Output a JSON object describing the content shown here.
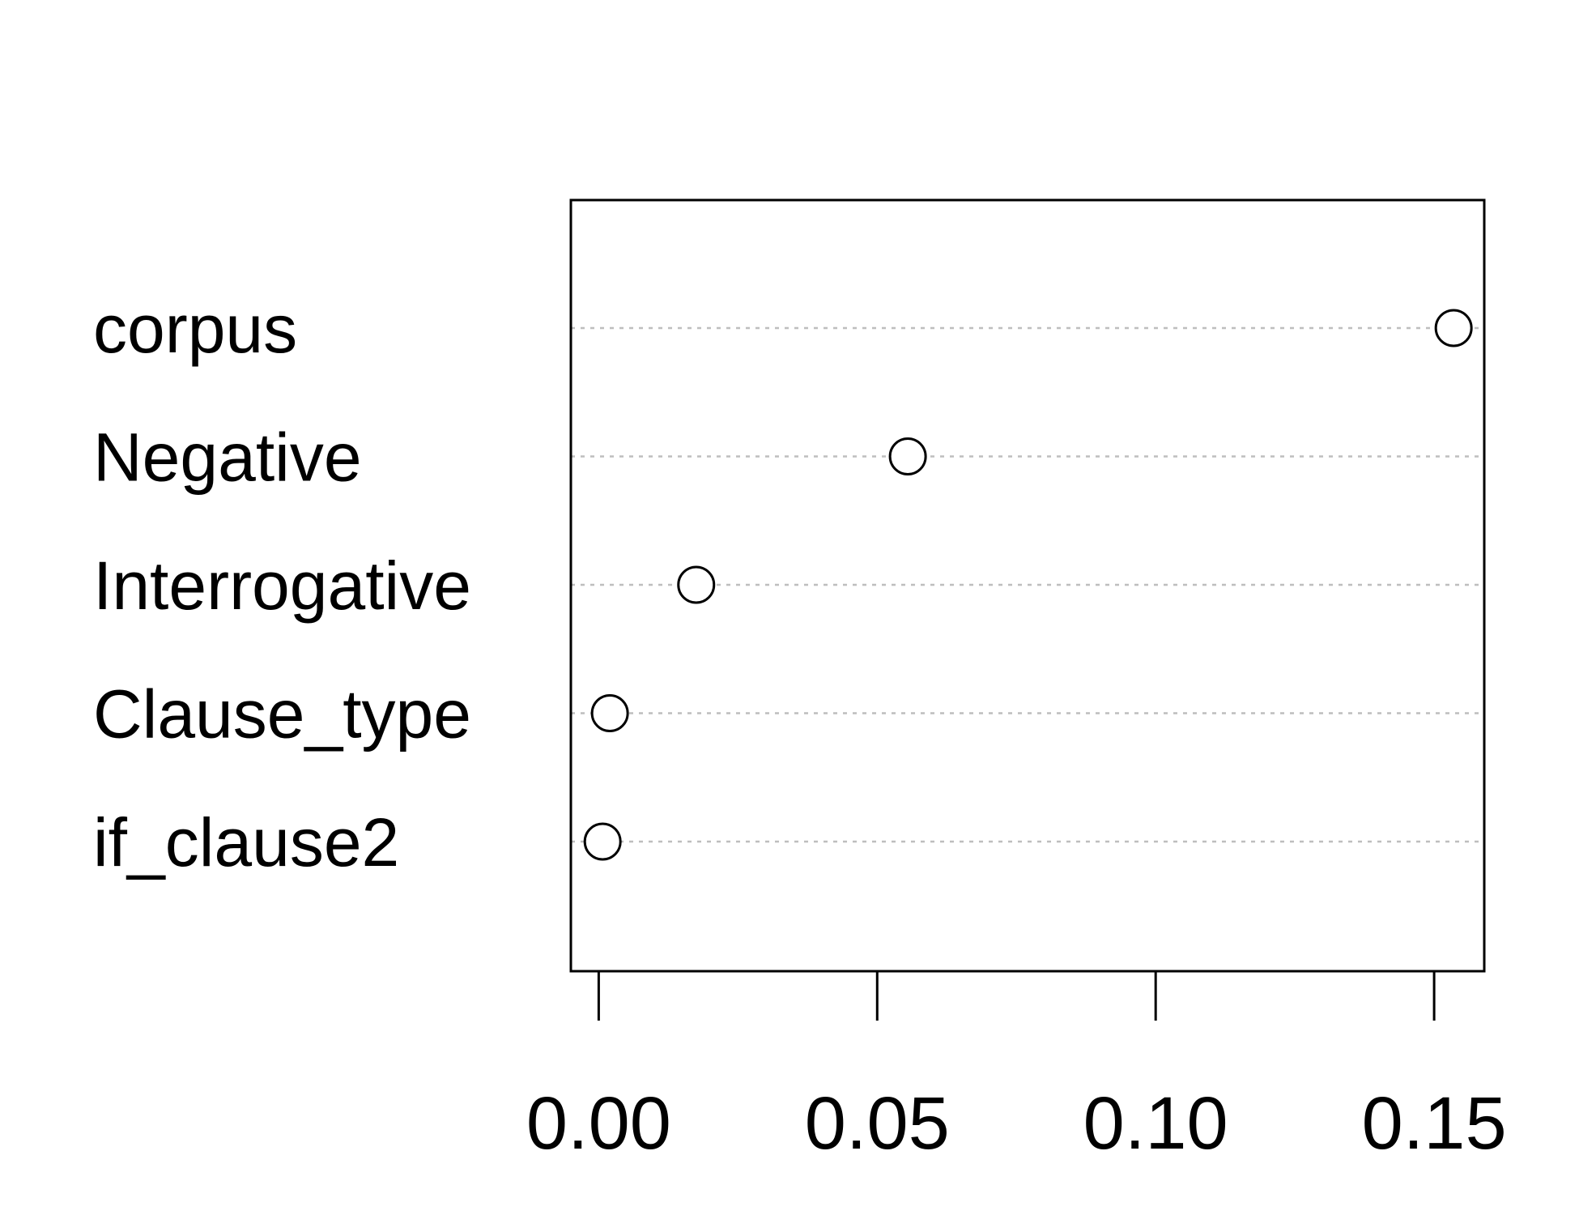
{
  "chart_data": {
    "type": "scatter",
    "style": "dotchart",
    "categories": [
      "corpus",
      "Negative",
      "Interrogative",
      "Clause_type",
      "if_clause2"
    ],
    "values": [
      0.1535,
      0.0555,
      0.0175,
      0.002,
      0.0007
    ],
    "x_ticks": [
      0.0,
      0.05,
      0.1,
      0.15
    ],
    "x_tick_labels": [
      "0.00",
      "0.05",
      "0.10",
      "0.15"
    ],
    "xlim": [
      -0.005,
      0.159
    ],
    "title": "",
    "xlabel": "",
    "ylabel": "",
    "grid": "horizontal dotted lines at each category",
    "legend": "none",
    "colors": {
      "points": "#000000",
      "grid": "#bebebe",
      "frame": "#000000"
    }
  }
}
